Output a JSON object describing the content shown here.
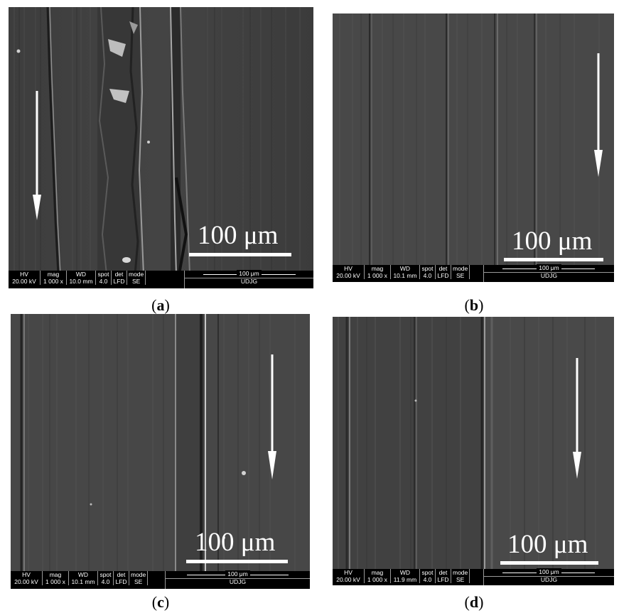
{
  "panels": [
    {
      "id": "a",
      "scale_label": "100 μm",
      "caption_open": "(",
      "caption_letter": "a",
      "caption_close": ")",
      "databar": {
        "headers": [
          "HV",
          "mag",
          "WD",
          "spot",
          "det",
          "mode"
        ],
        "values": [
          "20.00 kV",
          "1 000 x",
          "10.0 mm",
          "4.0",
          "LFD",
          "SE"
        ],
        "scale": "100 μm",
        "label": "UDJG"
      }
    },
    {
      "id": "b",
      "scale_label": "100 μm",
      "caption_open": "(",
      "caption_letter": "b",
      "caption_close": ")",
      "databar": {
        "headers": [
          "HV",
          "mag",
          "WD",
          "spot",
          "det",
          "mode"
        ],
        "values": [
          "20.00 kV",
          "1 000 x",
          "10.1 mm",
          "4.0",
          "LFD",
          "SE"
        ],
        "scale": "100 μm",
        "label": "UDJG"
      }
    },
    {
      "id": "c",
      "scale_label": "100 μm",
      "caption_open": "(",
      "caption_letter": "c",
      "caption_close": ")",
      "databar": {
        "headers": [
          "HV",
          "mag",
          "WD",
          "spot",
          "det",
          "mode"
        ],
        "values": [
          "20.00 kV",
          "1 000 x",
          "10.1 mm",
          "4.0",
          "LFD",
          "SE"
        ],
        "scale": "100 μm",
        "label": "UDJG"
      }
    },
    {
      "id": "d",
      "scale_label": "100 μm",
      "caption_open": "(",
      "caption_letter": "d",
      "caption_close": ")",
      "databar": {
        "headers": [
          "HV",
          "mag",
          "WD",
          "spot",
          "det",
          "mode"
        ],
        "values": [
          "20.00 kV",
          "1 000 x",
          "11.9 mm",
          "4.0",
          "LFD",
          "SE"
        ],
        "scale": "100 μm",
        "label": "UDJG"
      }
    }
  ],
  "colors": {
    "background": "#3a3a3a",
    "groove_dark": "#1e1e1e",
    "groove_light": "#9c9c9c",
    "annotation": "#ffffff"
  }
}
